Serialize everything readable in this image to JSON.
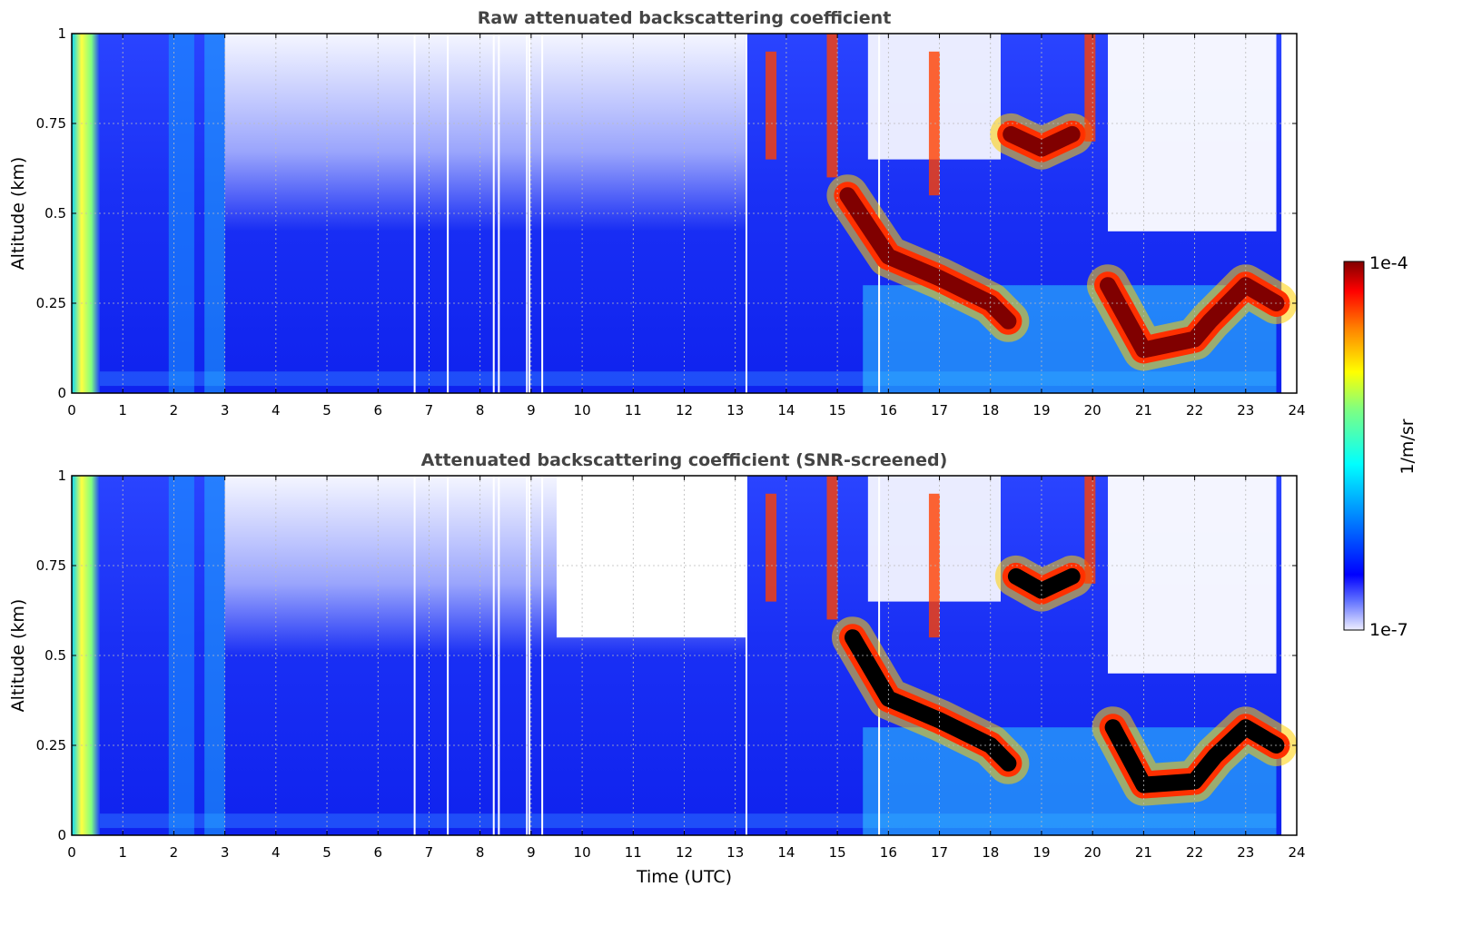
{
  "chart_data": [
    {
      "type": "heatmap",
      "title": "Raw attenuated backscattering coefficient",
      "xlabel": "",
      "ylabel": "Altitude (km)",
      "xlim": [
        0,
        24
      ],
      "ylim": [
        0,
        1
      ],
      "x_ticks": [
        "0",
        "1",
        "2",
        "3",
        "4",
        "5",
        "6",
        "7",
        "8",
        "9",
        "10",
        "11",
        "12",
        "13",
        "14",
        "15",
        "16",
        "17",
        "18",
        "19",
        "20",
        "21",
        "22",
        "23",
        "24"
      ],
      "y_ticks": [
        "0",
        "0.25",
        "0.5",
        "0.75",
        "1"
      ],
      "grid": true,
      "colorscale": "jet (log)",
      "color_range": [
        "1e-7",
        "1e-4"
      ],
      "features": [
        {
          "name": "cloud_layer_1",
          "x": [
            15.2,
            16.0,
            17.0,
            18.0,
            18.35
          ],
          "y": [
            0.55,
            0.38,
            0.32,
            0.25,
            0.2
          ],
          "level": "1e-4"
        },
        {
          "name": "cloud_layer_2",
          "x": [
            18.4,
            19.0,
            19.6
          ],
          "y": [
            0.72,
            0.68,
            0.72
          ],
          "level": "1e-4"
        },
        {
          "name": "cloud_layer_3",
          "x": [
            20.3,
            21.0,
            22.0,
            22.3,
            23.0,
            23.6
          ],
          "y": [
            0.3,
            0.12,
            0.15,
            0.2,
            0.3,
            0.25
          ],
          "level": "1e-4"
        }
      ]
    },
    {
      "type": "heatmap",
      "title": "Attenuated backscattering coefficient (SNR-screened)",
      "xlabel": "Time (UTC)",
      "ylabel": "Altitude (km)",
      "xlim": [
        0,
        24
      ],
      "ylim": [
        0,
        1
      ],
      "x_ticks": [
        "0",
        "1",
        "2",
        "3",
        "4",
        "5",
        "6",
        "7",
        "8",
        "9",
        "10",
        "11",
        "12",
        "13",
        "14",
        "15",
        "16",
        "17",
        "18",
        "19",
        "20",
        "21",
        "22",
        "23",
        "24"
      ],
      "y_ticks": [
        "0",
        "0.25",
        "0.5",
        "0.75",
        "1"
      ],
      "grid": true,
      "colorscale": "jet (log)",
      "color_range": [
        "1e-7",
        "1e-4"
      ],
      "features": [
        {
          "name": "saturated_layer_1",
          "x": [
            15.3,
            16.0,
            17.0,
            18.0,
            18.35
          ],
          "y": [
            0.55,
            0.38,
            0.32,
            0.25,
            0.2
          ],
          "level": "saturated"
        },
        {
          "name": "saturated_layer_2",
          "x": [
            18.5,
            19.0,
            19.6
          ],
          "y": [
            0.72,
            0.68,
            0.72
          ],
          "level": "saturated"
        },
        {
          "name": "saturated_layer_3",
          "x": [
            20.4,
            21.0,
            22.0,
            22.4,
            23.0,
            23.6
          ],
          "y": [
            0.3,
            0.14,
            0.15,
            0.22,
            0.3,
            0.25
          ],
          "level": "saturated"
        }
      ]
    }
  ],
  "colorbar": {
    "label": "1/m/sr",
    "max_label": "1e-4",
    "min_label": "1e-7"
  },
  "colors": {
    "low": "#eeeeff",
    "background_signal": "#1428f0",
    "high": "#800000",
    "saturated": "#000000",
    "title_gray": "#444444"
  }
}
